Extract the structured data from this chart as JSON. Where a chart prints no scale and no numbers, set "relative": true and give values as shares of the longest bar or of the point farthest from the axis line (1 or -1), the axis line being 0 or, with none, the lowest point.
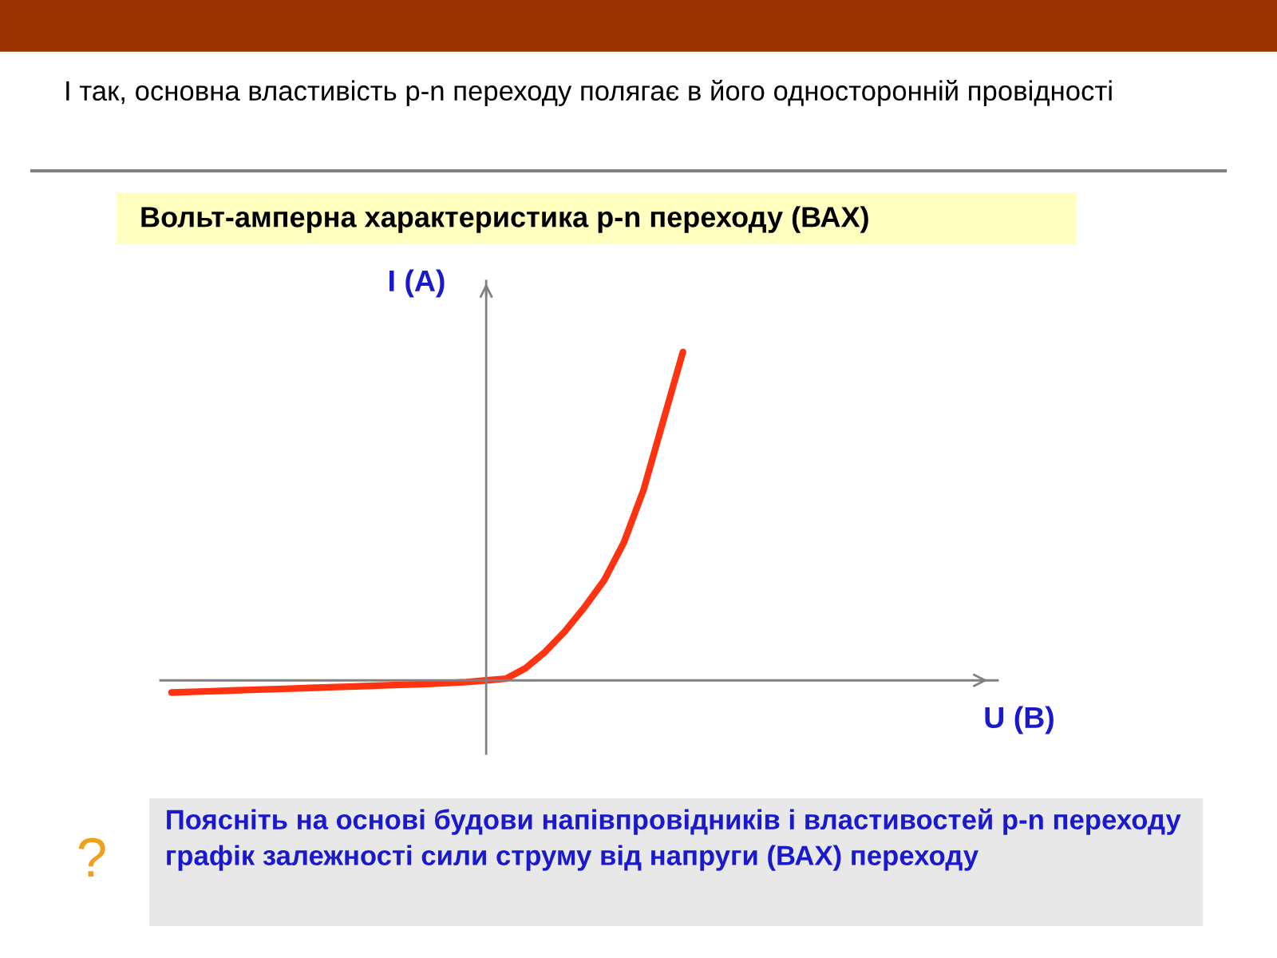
{
  "chart_data": {
    "type": "line",
    "title": "Вольт-амперна характеристика p-n переходу (ВАХ)",
    "xlabel": "U (В)",
    "ylabel": "І (А)",
    "relative": true,
    "grid": false,
    "legend": false,
    "marker": "none",
    "line_style": "solid",
    "categories": [
      null,
      null,
      null,
      null,
      null,
      null,
      null,
      null,
      null,
      null,
      null,
      null,
      null,
      null,
      null,
      null,
      null,
      null,
      null,
      null,
      null,
      null,
      null,
      null,
      null,
      null,
      null,
      null,
      null,
      null,
      null,
      null,
      null,
      null,
      null,
      null,
      null,
      null,
      null,
      null,
      null,
      null,
      null
    ],
    "series": [
      {
        "color": "#ff3311",
        "values": [
          -0.037,
          -0.035,
          -0.033,
          -0.031,
          -0.029,
          -0.027,
          -0.025,
          -0.023,
          -0.021,
          -0.019,
          -0.017,
          -0.015,
          -0.013,
          -0.011,
          -0.008,
          -0.005,
          0,
          0.005,
          0.037,
          0.087,
          0.149,
          0.223,
          0.305,
          0.42,
          0.58,
          0.79,
          1.0,
          null,
          null,
          null,
          null,
          null,
          null,
          null,
          null,
          null,
          null,
          null,
          null,
          null,
          null,
          null,
          null
        ]
      }
    ],
    "annotations": [
      "І так, основна властивість p-n переходу полягає в його односторонній провідності",
      "Поясніть на основі будови напівпровідників і властивостей p-n переходу графік залежності сили струму від напруги (ВАХ) переходу",
      "?"
    ]
  }
}
